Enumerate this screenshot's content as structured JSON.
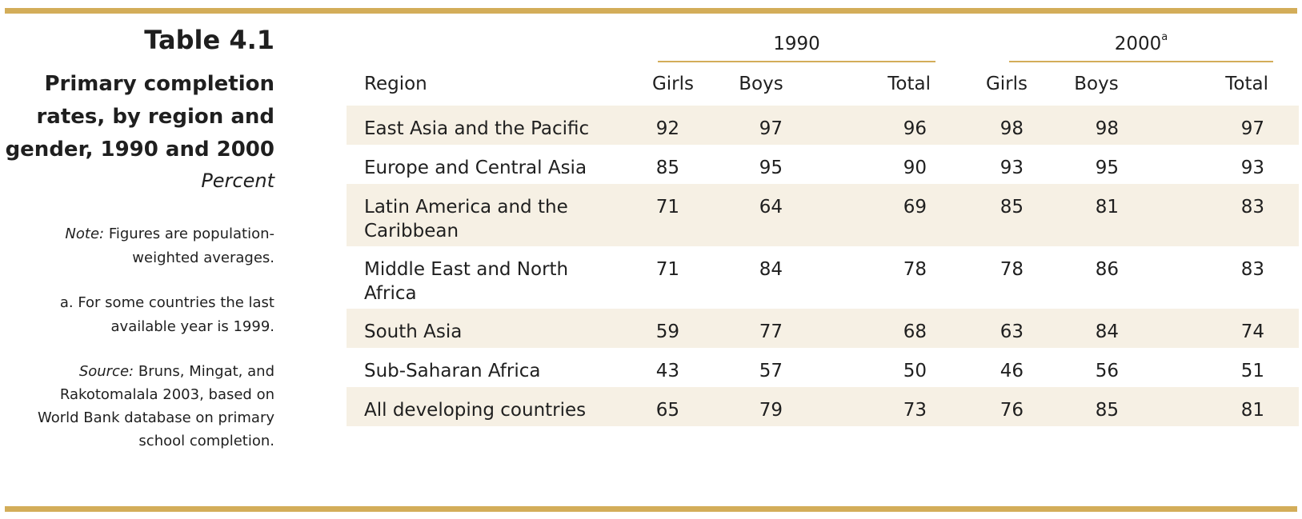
{
  "side": {
    "table_no": "Table 4.1",
    "title_lines": [
      "Primary completion",
      "rates, by region and",
      "gender, 1990 and 2000"
    ],
    "unit": "Percent",
    "note_lead": "Note:",
    "note_lines": [
      "Figures are population-",
      "weighted averages."
    ],
    "footnote_lines": [
      "a. For some countries the last",
      "available year is 1999."
    ],
    "source_lead": "Source:",
    "source_lines": [
      "Bruns, Mingat, and",
      "Rakotomalala 2003, based on",
      "World Bank database on primary",
      "school completion."
    ]
  },
  "table": {
    "year_1990": "1990",
    "year_2000": "2000",
    "year_2000_mark": "a",
    "col_region": "Region",
    "cols": [
      "Girls",
      "Boys",
      "Total",
      "Girls",
      "Boys",
      "Total"
    ],
    "rows": [
      {
        "region_lines": [
          "East Asia and the Pacific"
        ],
        "values": [
          "92",
          "97",
          "96",
          "98",
          "98",
          "97"
        ]
      },
      {
        "region_lines": [
          "Europe and Central Asia"
        ],
        "values": [
          "85",
          "95",
          "90",
          "93",
          "95",
          "93"
        ]
      },
      {
        "region_lines": [
          "Latin America and the",
          "Caribbean"
        ],
        "values": [
          "71",
          "64",
          "69",
          "85",
          "81",
          "83"
        ]
      },
      {
        "region_lines": [
          "Middle East and North",
          "Africa"
        ],
        "values": [
          "71",
          "84",
          "78",
          "78",
          "86",
          "83"
        ]
      },
      {
        "region_lines": [
          "South Asia"
        ],
        "values": [
          "59",
          "77",
          "68",
          "63",
          "84",
          "74"
        ]
      },
      {
        "region_lines": [
          "Sub-Saharan Africa"
        ],
        "values": [
          "43",
          "57",
          "50",
          "46",
          "56",
          "51"
        ]
      },
      {
        "region_lines": [
          "All developing countries"
        ],
        "values": [
          "65",
          "79",
          "73",
          "76",
          "85",
          "81"
        ]
      }
    ]
  },
  "colors": {
    "accent_rule": "#d3ad59",
    "row_shade": "#f6f0e4"
  }
}
